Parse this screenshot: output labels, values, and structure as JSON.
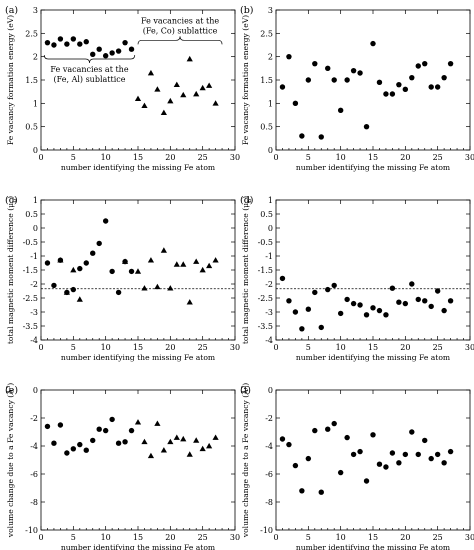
{
  "chart_data": [
    {
      "panel": "(a)",
      "type": "scatter",
      "title": "",
      "xlabel": "number identifying the missing Fe atom",
      "ylabel": "Fe vacancy formation energy (eV)",
      "xlim": [
        0,
        30
      ],
      "ylim": [
        0,
        3
      ],
      "xticks": [
        0,
        5,
        10,
        15,
        20,
        25,
        30
      ],
      "yticks": [
        0,
        0.5,
        1,
        1.5,
        2,
        2.5,
        3
      ],
      "grid": false,
      "series": [
        {
          "marker": "circle",
          "x": [
            1,
            2,
            3,
            4,
            5,
            6,
            7,
            8,
            9,
            10,
            11,
            12,
            13,
            14
          ],
          "y": [
            2.3,
            2.25,
            2.38,
            2.27,
            2.38,
            2.27,
            2.32,
            2.05,
            2.16,
            2.02,
            2.08,
            2.12,
            2.3,
            2.16
          ]
        },
        {
          "marker": "triangle",
          "x": [
            15,
            16,
            17,
            18,
            19,
            20,
            21,
            22,
            23,
            24,
            25,
            26,
            27
          ],
          "y": [
            1.1,
            0.95,
            1.65,
            1.3,
            0.8,
            1.05,
            1.4,
            1.18,
            1.95,
            1.2,
            1.33,
            1.38,
            1.0
          ]
        }
      ],
      "annotations": [
        {
          "text": "Fe vacancies at the",
          "text2": "(Fe, Co) sublattice",
          "brace_x": [
            15,
            28
          ],
          "y": 2.35
        },
        {
          "text": "Fe vacancies at the",
          "text2": "(Fe, Al) sublattice",
          "brace_x": [
            0.5,
            14.5
          ],
          "y": 1.95
        }
      ]
    },
    {
      "panel": "(b)",
      "type": "scatter",
      "title": "",
      "xlabel": "number identifying the missing Fe atom",
      "ylabel": "Fe vacancy formation energy (eV)",
      "xlim": [
        0,
        30
      ],
      "ylim": [
        0,
        3
      ],
      "xticks": [
        0,
        5,
        10,
        15,
        20,
        25,
        30
      ],
      "yticks": [
        0,
        0.5,
        1,
        1.5,
        2,
        2.5,
        3
      ],
      "grid": false,
      "series": [
        {
          "marker": "circle",
          "x": [
            1,
            2,
            3,
            4,
            5,
            6,
            7,
            8,
            9,
            10,
            11,
            12,
            13,
            14,
            15,
            16,
            17,
            18,
            19,
            20,
            21,
            22,
            23,
            24,
            25,
            26,
            27
          ],
          "y": [
            1.35,
            2.0,
            1.0,
            0.3,
            1.5,
            1.85,
            0.28,
            1.75,
            1.5,
            0.85,
            1.5,
            1.7,
            1.65,
            0.5,
            2.28,
            1.45,
            1.2,
            1.2,
            1.4,
            1.3,
            1.55,
            1.8,
            1.85,
            1.35,
            1.35,
            1.55,
            1.85
          ]
        }
      ]
    },
    {
      "panel": "(c)",
      "type": "scatter",
      "title": "",
      "xlabel": "number identifying the missing Fe atom",
      "ylabel": "total magnetic moment difference (μ",
      "ylabel_sub": "B",
      "ylabel_end": ")",
      "xlim": [
        0,
        30
      ],
      "ylim": [
        -4,
        1
      ],
      "xticks": [
        0,
        5,
        10,
        15,
        20,
        25,
        30
      ],
      "yticks": [
        -4,
        -3.5,
        -3,
        -2.5,
        -2,
        -1.5,
        -1,
        -0.5,
        0,
        0.5,
        1
      ],
      "reference_line": -2.17,
      "grid": false,
      "series": [
        {
          "marker": "circle",
          "x": [
            1,
            2,
            3,
            4,
            5,
            6,
            7,
            8,
            9,
            10,
            11,
            12,
            13,
            14
          ],
          "y": [
            -1.25,
            -2.05,
            -1.15,
            -2.3,
            -2.2,
            -1.45,
            -1.25,
            -0.9,
            -0.55,
            0.25,
            -1.55,
            -2.3,
            -1.2,
            -1.55
          ]
        },
        {
          "marker": "triangle",
          "x": [
            3,
            4,
            5,
            6,
            13,
            15,
            16,
            17,
            18,
            19,
            20,
            21,
            22,
            23,
            24,
            25,
            26,
            27
          ],
          "y": [
            -1.15,
            -2.3,
            -1.5,
            -2.55,
            -1.2,
            -1.55,
            -2.15,
            -1.15,
            -2.1,
            -0.8,
            -2.15,
            -1.3,
            -1.3,
            -2.65,
            -1.2,
            -1.5,
            -1.35,
            -1.15
          ]
        }
      ]
    },
    {
      "panel": "(d)",
      "type": "scatter",
      "title": "",
      "xlabel": "number identifying the missing Fe atom",
      "ylabel": "total magnetic moment difference (μ",
      "ylabel_sub": "B",
      "ylabel_end": ")",
      "xlim": [
        0,
        30
      ],
      "ylim": [
        -4,
        1
      ],
      "xticks": [
        0,
        5,
        10,
        15,
        20,
        25,
        30
      ],
      "yticks": [
        -4,
        -3.5,
        -3,
        -2.5,
        -2,
        -1.5,
        -1,
        -0.5,
        0,
        0.5,
        1
      ],
      "reference_line": -2.17,
      "grid": false,
      "series": [
        {
          "marker": "circle",
          "x": [
            1,
            2,
            3,
            4,
            5,
            6,
            7,
            8,
            9,
            10,
            11,
            12,
            13,
            14,
            15,
            16,
            17,
            18,
            19,
            20,
            21,
            22,
            23,
            24,
            25,
            26,
            27
          ],
          "y": [
            -1.8,
            -2.6,
            -3.0,
            -3.6,
            -2.9,
            -2.3,
            -3.55,
            -2.2,
            -2.05,
            -3.05,
            -2.55,
            -2.7,
            -2.75,
            -3.1,
            -2.85,
            -2.95,
            -3.1,
            -2.15,
            -2.65,
            -2.7,
            -2.0,
            -2.55,
            -2.6,
            -2.8,
            -2.25,
            -2.95,
            -2.6
          ]
        }
      ]
    },
    {
      "panel": "(e)",
      "type": "scatter",
      "title": "",
      "xlabel": "number identifying the missing Fe atom",
      "ylabel": "volume change due to a Fe vacancy (Å",
      "ylabel_sup": "3",
      "ylabel_end": ")",
      "xlim": [
        0,
        30
      ],
      "ylim": [
        -10,
        0
      ],
      "xticks": [
        0,
        5,
        10,
        15,
        20,
        25,
        30
      ],
      "yticks": [
        -10,
        -8,
        -6,
        -4,
        -2,
        0
      ],
      "grid": false,
      "series": [
        {
          "marker": "circle",
          "x": [
            1,
            2,
            3,
            4,
            5,
            6,
            7,
            8,
            9,
            10,
            11,
            12,
            13,
            14
          ],
          "y": [
            -2.6,
            -3.8,
            -2.5,
            -4.5,
            -4.2,
            -3.9,
            -4.3,
            -3.6,
            -2.8,
            -2.9,
            -2.1,
            -3.8,
            -3.7,
            -2.9
          ]
        },
        {
          "marker": "triangle",
          "x": [
            15,
            16,
            17,
            18,
            19,
            20,
            21,
            22,
            23,
            24,
            25,
            26,
            27
          ],
          "y": [
            -2.3,
            -3.7,
            -4.7,
            -2.4,
            -4.3,
            -3.7,
            -3.4,
            -3.5,
            -4.6,
            -3.6,
            -4.2,
            -4.0,
            -3.4
          ]
        }
      ]
    },
    {
      "panel": "(f)",
      "type": "scatter",
      "title": "",
      "xlabel": "number identifying the missing Fe atom",
      "ylabel": "volume change due to a Fe vacancy (Å",
      "ylabel_sup": "3",
      "ylabel_end": ")",
      "xlim": [
        0,
        30
      ],
      "ylim": [
        -10,
        0
      ],
      "xticks": [
        0,
        5,
        10,
        15,
        20,
        25,
        30
      ],
      "yticks": [
        -10,
        -8,
        -6,
        -4,
        -2,
        0
      ],
      "grid": false,
      "series": [
        {
          "marker": "circle",
          "x": [
            1,
            2,
            3,
            4,
            5,
            6,
            7,
            8,
            9,
            10,
            11,
            12,
            13,
            14,
            15,
            16,
            17,
            18,
            19,
            20,
            21,
            22,
            23,
            24,
            25,
            26,
            27
          ],
          "y": [
            -3.5,
            -3.9,
            -5.4,
            -7.2,
            -4.9,
            -2.9,
            -7.3,
            -2.8,
            -2.4,
            -5.9,
            -3.4,
            -4.6,
            -4.4,
            -6.5,
            -3.2,
            -5.3,
            -5.5,
            -4.5,
            -5.2,
            -4.6,
            -3.0,
            -4.6,
            -3.6,
            -4.9,
            -4.6,
            -5.2,
            -4.4
          ]
        }
      ]
    }
  ]
}
